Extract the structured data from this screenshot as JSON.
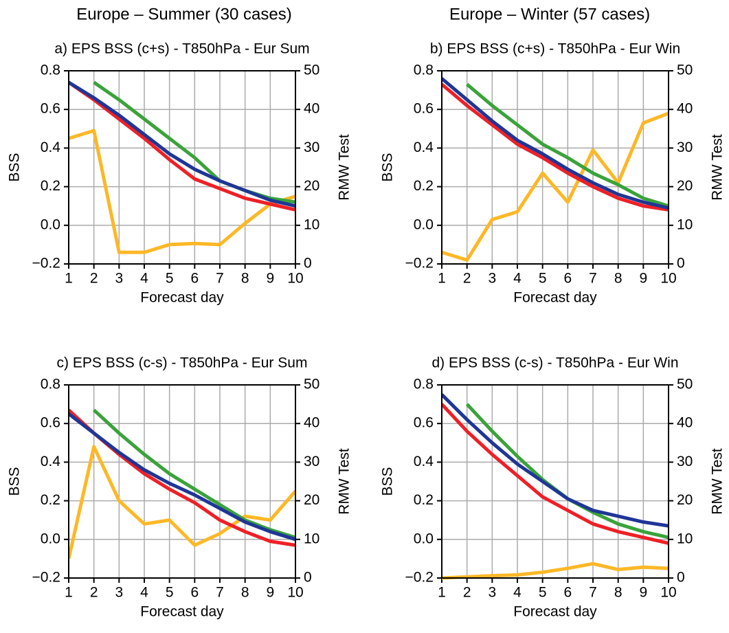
{
  "headers": [
    "Europe – Summer (30 cases)",
    "Europe – Winter (57 cases)"
  ],
  "chart_data": [
    {
      "type": "line",
      "title": "a) EPS BSS (c+s) - T850hPa - Eur Sum",
      "xlabel": "Forecast day",
      "ylabel": "BSS",
      "y2label": "RMW Test",
      "x": [
        1,
        2,
        3,
        4,
        5,
        6,
        7,
        8,
        9,
        10
      ],
      "xlim": [
        1,
        10
      ],
      "xticks": [
        1,
        2,
        3,
        4,
        5,
        6,
        7,
        8,
        9,
        10
      ],
      "ylim": [
        -0.2,
        0.8
      ],
      "yticks": [
        {
          "value": -0.2,
          "label": "−0.2"
        },
        {
          "value": 0,
          "label": "0.0"
        },
        0.2,
        0.4,
        0.6,
        0.8
      ],
      "y2lim": [
        0,
        50
      ],
      "y2ticks": [
        0,
        10,
        20,
        30,
        40,
        50
      ],
      "grid": true,
      "series": [
        {
          "color": "#fdb827",
          "axis": "y2",
          "values": [
            32.5,
            34.5,
            3,
            3,
            5,
            5.3,
            5,
            10.5,
            15.5,
            17.5
          ]
        },
        {
          "color": "#3aa33a",
          "values": [
            null,
            0.74,
            0.65,
            0.55,
            0.45,
            0.35,
            0.23,
            0.18,
            0.14,
            0.12
          ]
        },
        {
          "color": "#ee2026",
          "values": [
            0.74,
            0.65,
            0.55,
            0.45,
            0.34,
            0.24,
            0.19,
            0.14,
            0.11,
            0.08
          ]
        },
        {
          "color": "#1f3696",
          "values": [
            0.74,
            0.66,
            0.57,
            0.47,
            0.37,
            0.29,
            0.23,
            0.18,
            0.13,
            0.1
          ]
        }
      ]
    },
    {
      "type": "line",
      "title": "b) EPS BSS (c+s) - T850hPa - Eur Win",
      "xlabel": "Forecast day",
      "ylabel": "BSS",
      "y2label": "RMW Test",
      "x": [
        1,
        2,
        3,
        4,
        5,
        6,
        7,
        8,
        9,
        10
      ],
      "xlim": [
        1,
        10
      ],
      "xticks": [
        1,
        2,
        3,
        4,
        5,
        6,
        7,
        8,
        9,
        10
      ],
      "ylim": [
        -0.2,
        0.8
      ],
      "yticks": [
        {
          "value": -0.2,
          "label": "−0.2"
        },
        {
          "value": 0,
          "label": "0.0"
        },
        0.2,
        0.4,
        0.6,
        0.8
      ],
      "y2lim": [
        0,
        50
      ],
      "y2ticks": [
        0,
        10,
        20,
        30,
        40,
        50
      ],
      "grid": true,
      "series": [
        {
          "color": "#fdb827",
          "axis": "y2",
          "values": [
            3,
            1,
            11.5,
            13.5,
            23.5,
            16,
            29.5,
            21,
            36.5,
            39
          ]
        },
        {
          "color": "#3aa33a",
          "values": [
            null,
            0.73,
            0.62,
            0.52,
            0.42,
            0.35,
            0.27,
            0.21,
            0.14,
            0.1
          ]
        },
        {
          "color": "#ee2026",
          "values": [
            0.73,
            0.62,
            0.52,
            0.42,
            0.35,
            0.27,
            0.2,
            0.14,
            0.1,
            0.08
          ]
        },
        {
          "color": "#1f3696",
          "values": [
            0.76,
            0.65,
            0.54,
            0.44,
            0.37,
            0.29,
            0.22,
            0.16,
            0.12,
            0.09
          ]
        }
      ]
    },
    {
      "type": "line",
      "title": "c) EPS BSS (c-s) - T850hPa - Eur Sum",
      "xlabel": "Forecast day",
      "ylabel": "BSS",
      "y2label": "RMW Test",
      "x": [
        1,
        2,
        3,
        4,
        5,
        6,
        7,
        8,
        9,
        10
      ],
      "xlim": [
        1,
        10
      ],
      "xticks": [
        1,
        2,
        3,
        4,
        5,
        6,
        7,
        8,
        9,
        10
      ],
      "ylim": [
        -0.2,
        0.8
      ],
      "yticks": [
        {
          "value": -0.2,
          "label": "−0.2"
        },
        {
          "value": 0,
          "label": "0.0"
        },
        0.2,
        0.4,
        0.6,
        0.8
      ],
      "y2lim": [
        0,
        50
      ],
      "y2ticks": [
        0,
        10,
        20,
        30,
        40,
        50
      ],
      "grid": true,
      "series": [
        {
          "color": "#fdb827",
          "axis": "y2",
          "values": [
            5,
            34,
            20,
            14,
            15,
            8.5,
            11.5,
            16,
            15,
            22.5
          ]
        },
        {
          "color": "#3aa33a",
          "values": [
            null,
            0.67,
            0.55,
            0.44,
            0.34,
            0.26,
            0.18,
            0.1,
            0.05,
            0.01
          ]
        },
        {
          "color": "#ee2026",
          "values": [
            0.67,
            0.55,
            0.44,
            0.34,
            0.26,
            0.19,
            0.1,
            0.04,
            -0.01,
            -0.03
          ]
        },
        {
          "color": "#1f3696",
          "values": [
            0.65,
            0.55,
            0.45,
            0.36,
            0.29,
            0.23,
            0.16,
            0.09,
            0.04,
            0.0
          ]
        }
      ]
    },
    {
      "type": "line",
      "title": "d) EPS BSS (c-s) - T850hPa - Eur Win",
      "xlabel": "Forecast day",
      "ylabel": "BSS",
      "y2label": "RMW Test",
      "x": [
        1,
        2,
        3,
        4,
        5,
        6,
        7,
        8,
        9,
        10
      ],
      "xlim": [
        1,
        10
      ],
      "xticks": [
        1,
        2,
        3,
        4,
        5,
        6,
        7,
        8,
        9,
        10
      ],
      "ylim": [
        -0.2,
        0.8
      ],
      "yticks": [
        {
          "value": -0.2,
          "label": "−0.2"
        },
        {
          "value": 0,
          "label": "0.0"
        },
        0.2,
        0.4,
        0.6,
        0.8
      ],
      "y2lim": [
        0,
        50
      ],
      "y2ticks": [
        0,
        10,
        20,
        30,
        40,
        50
      ],
      "grid": true,
      "series": [
        {
          "color": "#fdb827",
          "axis": "y2",
          "values": [
            0,
            0.3,
            0.6,
            0.8,
            1.5,
            2.5,
            3.7,
            2.2,
            2.8,
            2.5
          ]
        },
        {
          "color": "#3aa33a",
          "values": [
            null,
            0.7,
            0.56,
            0.43,
            0.31,
            0.21,
            0.14,
            0.08,
            0.04,
            0.01
          ]
        },
        {
          "color": "#ee2026",
          "values": [
            0.7,
            0.56,
            0.44,
            0.33,
            0.22,
            0.15,
            0.08,
            0.04,
            0.01,
            -0.02
          ]
        },
        {
          "color": "#1f3696",
          "values": [
            0.75,
            0.62,
            0.5,
            0.39,
            0.3,
            0.21,
            0.15,
            0.12,
            0.09,
            0.07
          ]
        }
      ]
    }
  ]
}
